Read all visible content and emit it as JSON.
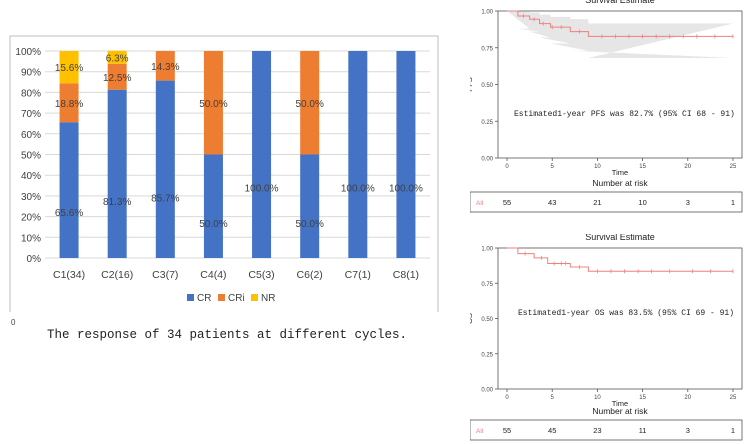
{
  "bar_chart_data": {
    "type": "bar",
    "stacked": true,
    "categories": [
      "C1(34)",
      "C2(16)",
      "C3(7)",
      "C4(4)",
      "C5(3)",
      "C6(2)",
      "C7(1)",
      "C8(1)"
    ],
    "series": [
      {
        "name": "CR",
        "color": "#4472C4",
        "values": [
          65.6,
          81.3,
          85.7,
          50.0,
          100.0,
          50.0,
          100.0,
          100.0
        ],
        "labels": [
          "65.6%",
          "81.3%",
          "85.7%",
          "50.0%",
          "100.0%",
          "50.0%",
          "100.0%",
          "100.0%"
        ]
      },
      {
        "name": "CRi",
        "color": "#ED7D31",
        "values": [
          18.8,
          12.5,
          14.3,
          50.0,
          0,
          50.0,
          0,
          0
        ],
        "labels": [
          "18.8%",
          "12.5%",
          "14.3%",
          "50.0%",
          "",
          "50.0%",
          "",
          ""
        ]
      },
      {
        "name": "NR",
        "color": "#FFC000",
        "values": [
          15.6,
          6.3,
          0,
          0,
          0,
          0,
          0,
          0
        ],
        "labels": [
          "15.6%",
          "6.3%",
          "",
          "",
          "",
          "",
          "",
          ""
        ]
      }
    ],
    "yticks": [
      "0%",
      "10%",
      "20%",
      "30%",
      "40%",
      "50%",
      "60%",
      "70%",
      "80%",
      "90%",
      "100%"
    ],
    "ylim": [
      0,
      100
    ],
    "legend": "bottom"
  },
  "caption": "The response of 34 patients at different cycles.",
  "zero_mark": "0",
  "km_charts": [
    {
      "type": "line",
      "title": "Survival Estimate",
      "ylabel": "PFS",
      "xlabel": "Time",
      "yticks": [
        "0.00",
        "0.25",
        "0.50",
        "0.75",
        "1.00"
      ],
      "xticks": [
        "0",
        "5",
        "10",
        "15",
        "20",
        "25"
      ],
      "xlim": [
        -1,
        26
      ],
      "ylim": [
        0,
        1
      ],
      "annotation": "Estimated1-year PFS was 82.7% (95% CI 68 - 91)",
      "step_x": [
        0,
        1.2,
        2.5,
        3.6,
        4.8,
        7.0,
        9.0,
        25
      ],
      "step_y": [
        1.0,
        0.966,
        0.944,
        0.914,
        0.89,
        0.86,
        0.827,
        0.827
      ],
      "ci_low": [
        1.0,
        0.88,
        0.86,
        0.82,
        0.78,
        0.73,
        0.68,
        0.68
      ],
      "ci_high": [
        1.0,
        0.995,
        0.99,
        0.975,
        0.96,
        0.945,
        0.915,
        0.915
      ],
      "censor_x": [
        1.8,
        3.0,
        4.0,
        5.0,
        6.0,
        8.0,
        10.5,
        12,
        13.5,
        15,
        16.5,
        18,
        19.5,
        21,
        23,
        25
      ],
      "risk_title": "Number at risk",
      "risk_group": "All",
      "risk_counts": [
        "55",
        "43",
        "21",
        "10",
        "3",
        "1"
      ]
    },
    {
      "type": "line",
      "title": "Survival Estimate",
      "ylabel": "OS",
      "xlabel": "Time",
      "yticks": [
        "0.00",
        "0.25",
        "0.50",
        "0.75",
        "1.00"
      ],
      "xticks": [
        "0",
        "5",
        "10",
        "15",
        "20",
        "25"
      ],
      "xlim": [
        -1,
        26
      ],
      "ylim": [
        0,
        1
      ],
      "annotation": "Estimated1-year  OS was 83.5% (95% CI 69 - 91)",
      "step_x": [
        0,
        1.2,
        3.0,
        4.5,
        7.0,
        9.0,
        25
      ],
      "step_y": [
        1.0,
        0.96,
        0.93,
        0.89,
        0.865,
        0.835,
        0.835
      ],
      "censor_x": [
        2.0,
        3.8,
        5.2,
        6.0,
        6.5,
        8.0,
        10.0,
        11.5,
        13,
        14.5,
        16,
        18,
        20.5,
        22.5,
        25
      ],
      "risk_title": "Number at risk",
      "risk_group": "All",
      "risk_counts": [
        "55",
        "45",
        "23",
        "11",
        "3",
        "1"
      ]
    }
  ]
}
